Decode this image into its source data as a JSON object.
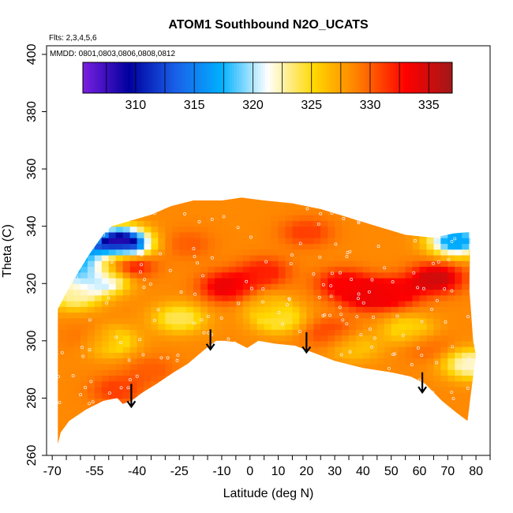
{
  "chart_data": {
    "type": "heatmap",
    "title": "ATOM1 Southbound N2O_UCATS",
    "subtitle": "Flts: 2,3,4,5,6",
    "annotation": "MMDD: 0801,0803,0806,0808,0812",
    "xlabel": "Latitude (deg N)",
    "ylabel": "Theta (C)",
    "xlim": [
      -72,
      85
    ],
    "ylim": [
      260,
      403
    ],
    "x_ticks": [
      -70,
      -55,
      -40,
      -25,
      -10,
      0,
      10,
      20,
      30,
      40,
      50,
      60,
      70,
      80
    ],
    "x_tick_labels": [
      "-70",
      "-55",
      "-40",
      "-25",
      "-10",
      "0",
      "10",
      "20",
      "30",
      "40",
      "50",
      "60",
      "70",
      "80"
    ],
    "y_ticks": [
      260,
      280,
      300,
      320,
      340,
      360,
      380,
      400
    ],
    "y_tick_labels": [
      "260",
      "280",
      "300",
      "320",
      "340",
      "360",
      "380",
      "400"
    ],
    "colorbar": {
      "range": [
        305.5,
        337
      ],
      "ticks": [
        310,
        315,
        320,
        325,
        330,
        335
      ],
      "tick_labels": [
        "310",
        "315",
        "320",
        "325",
        "330",
        "335"
      ],
      "colors": [
        "#7a1fe0",
        "#00009e",
        "#1a5fe8",
        "#00b0ff",
        "#ffffff",
        "#ffd800",
        "#ff7a00",
        "#ff0000",
        "#a01818"
      ]
    },
    "lower_boundary": [
      [
        -68,
        264
      ],
      [
        -67,
        268
      ],
      [
        -64,
        272
      ],
      [
        -58,
        276
      ],
      [
        -52,
        279
      ],
      [
        -47,
        280
      ],
      [
        -45,
        278
      ],
      [
        -42,
        279
      ],
      [
        -38,
        282
      ],
      [
        -33,
        285
      ],
      [
        -27,
        289
      ],
      [
        -22,
        292
      ],
      [
        -16,
        297
      ],
      [
        -12,
        300
      ],
      [
        -9,
        300
      ],
      [
        -5,
        299.5
      ],
      [
        -1,
        297.5
      ],
      [
        3,
        300
      ],
      [
        9,
        299
      ],
      [
        16,
        298.3
      ],
      [
        22,
        296
      ],
      [
        30,
        293
      ],
      [
        40,
        290.5
      ],
      [
        50,
        289
      ],
      [
        57,
        287.5
      ],
      [
        62,
        285
      ],
      [
        68,
        279
      ],
      [
        73,
        275
      ],
      [
        77,
        272
      ]
    ],
    "upper_boundary": [
      [
        -68,
        311
      ],
      [
        -66,
        315
      ],
      [
        -62,
        322
      ],
      [
        -57,
        330
      ],
      [
        -52,
        337
      ],
      [
        -49,
        340
      ],
      [
        -42,
        342
      ],
      [
        -35,
        344
      ],
      [
        -28,
        347
      ],
      [
        -20,
        349
      ],
      [
        -10,
        349
      ],
      [
        -3,
        350
      ],
      [
        5,
        349
      ],
      [
        15,
        348
      ],
      [
        25,
        346
      ],
      [
        35,
        343
      ],
      [
        45,
        340
      ],
      [
        55,
        337
      ],
      [
        65,
        336
      ],
      [
        72,
        337.5
      ],
      [
        78,
        338
      ]
    ],
    "right_edge": [
      [
        78,
        338
      ],
      [
        77.5,
        320
      ],
      [
        79,
        300
      ],
      [
        80,
        295
      ],
      [
        78,
        280
      ],
      [
        77,
        272
      ]
    ],
    "hotspots": [
      {
        "lat": -45,
        "theta": 327,
        "value": 336
      },
      {
        "lat": -8,
        "theta": 319,
        "value": 334
      },
      {
        "lat": 5,
        "theta": 324,
        "value": 332
      },
      {
        "lat": -35,
        "theta": 290,
        "value": 330
      },
      {
        "lat": 42,
        "theta": 316,
        "value": 334
      },
      {
        "lat": 33,
        "theta": 320,
        "value": 333
      },
      {
        "lat": 52,
        "theta": 317,
        "value": 333
      },
      {
        "lat": 66,
        "theta": 322,
        "value": 335
      },
      {
        "lat": -22,
        "theta": 334,
        "value": 330
      },
      {
        "lat": 20,
        "theta": 338,
        "value": 331
      },
      {
        "lat": 28,
        "theta": 303,
        "value": 331
      },
      {
        "lat": -55,
        "theta": 301,
        "value": 331
      },
      {
        "lat": 63,
        "theta": 298,
        "value": 330
      },
      {
        "lat": -47,
        "theta": 283,
        "value": 331
      }
    ],
    "coldspots": [
      {
        "lat": -46,
        "theta": 334,
        "value": 306
      },
      {
        "lat": -59,
        "theta": 328,
        "value": 316
      },
      {
        "lat": -52,
        "theta": 322,
        "value": 319
      },
      {
        "lat": 73,
        "theta": 335,
        "value": 317
      },
      {
        "lat": -62,
        "theta": 316,
        "value": 323
      },
      {
        "lat": -25,
        "theta": 308,
        "value": 324
      },
      {
        "lat": 10,
        "theta": 308,
        "value": 324
      },
      {
        "lat": 56,
        "theta": 304,
        "value": 325
      },
      {
        "lat": -50,
        "theta": 300,
        "value": 323
      },
      {
        "lat": 78,
        "theta": 292,
        "value": 322
      },
      {
        "lat": 5,
        "theta": 313,
        "value": 327
      },
      {
        "lat": 37,
        "theta": 298,
        "value": 326
      }
    ],
    "background_value": 328.5,
    "arrows": [
      {
        "lat": -42,
        "theta_top": 285,
        "theta_bottom": 277
      },
      {
        "lat": -14,
        "theta_top": 304,
        "theta_bottom": 297
      },
      {
        "lat": 20,
        "theta_top": 303,
        "theta_bottom": 296
      },
      {
        "lat": 61,
        "theta_top": 289,
        "theta_bottom": 282
      }
    ],
    "sample_points_count": 220
  }
}
